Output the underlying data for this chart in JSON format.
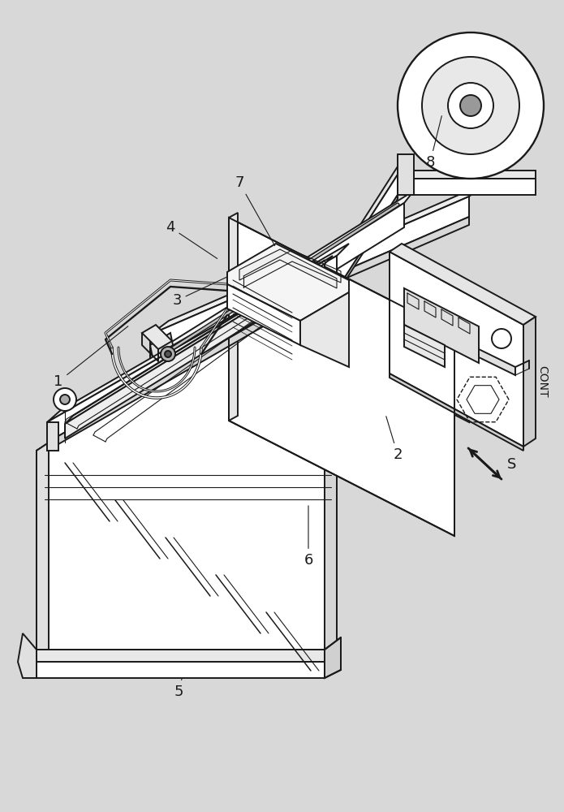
{
  "bg_color": "#d8d8d8",
  "lc": "#1a1a1a",
  "lw": 1.4,
  "lt": 0.8,
  "figsize": [
    6.95,
    10.0
  ],
  "dpi": 100
}
